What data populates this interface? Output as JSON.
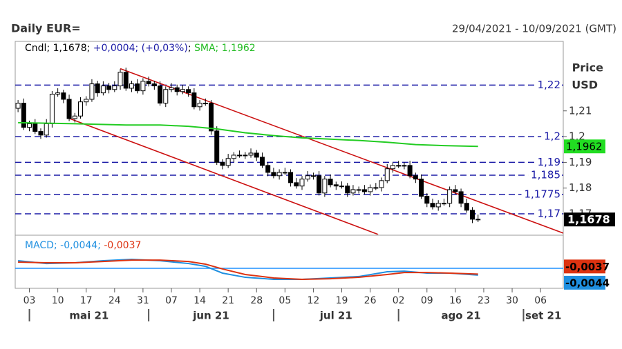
{
  "chart_data": [
    {
      "type": "candlestick",
      "title": "Daily EUR=",
      "subtitle": "29/04/2021 - 10/09/2021 (GMT)",
      "y_label": "Price",
      "y_unit": "USD",
      "xlim": [
        -0.5,
        96
      ],
      "xticks": [
        {
          "value": 2,
          "label": "03"
        },
        {
          "value": 7,
          "label": "10"
        },
        {
          "value": 12,
          "label": "17"
        },
        {
          "value": 17,
          "label": "24"
        },
        {
          "value": 22,
          "label": "31"
        },
        {
          "value": 27,
          "label": "07"
        },
        {
          "value": 32,
          "label": "14"
        },
        {
          "value": 37,
          "label": "21"
        },
        {
          "value": 42,
          "label": "28"
        },
        {
          "value": 47,
          "label": "05"
        },
        {
          "value": 52,
          "label": "12"
        },
        {
          "value": 57,
          "label": "19"
        },
        {
          "value": 62,
          "label": "26"
        },
        {
          "value": 67,
          "label": "02"
        },
        {
          "value": 72,
          "label": "09"
        },
        {
          "value": 77,
          "label": "16"
        },
        {
          "value": 82,
          "label": "23"
        },
        {
          "value": 87,
          "label": "30"
        },
        {
          "value": 92,
          "label": "06"
        }
      ],
      "month_ticks": [
        {
          "value": 2,
          "label": "mai 21"
        },
        {
          "value": 23,
          "label": "jun 21"
        },
        {
          "value": 45,
          "label": "jul 21"
        },
        {
          "value": 67,
          "label": "ago 21"
        },
        {
          "value": 89,
          "label": "set 21"
        }
      ],
      "ylim": [
        1.1625,
        1.237
      ],
      "yticks": [
        {
          "value": 1.21,
          "label": "1,21"
        },
        {
          "value": 1.2,
          "label": "1,2"
        },
        {
          "value": 1.19,
          "label": "1,19"
        },
        {
          "value": 1.18,
          "label": "1,18"
        },
        {
          "value": 1.17,
          "label": "1,17"
        }
      ],
      "series": [
        {
          "name": "Cndl",
          "color": "#000000",
          "last_label": "1,1678",
          "change": "+0,0004",
          "change_pct": "(+0,03%)",
          "x": [
            0,
            1,
            2,
            3,
            4,
            5,
            6,
            7,
            8,
            9,
            10,
            11,
            12,
            13,
            14,
            15,
            16,
            17,
            18,
            19,
            20,
            21,
            22,
            23,
            24,
            25,
            26,
            27,
            28,
            29,
            30,
            31,
            32,
            33,
            34,
            35,
            36,
            37,
            38,
            39,
            40,
            41,
            42,
            43,
            44,
            45,
            46,
            47,
            48,
            49,
            50,
            51,
            52,
            53,
            54,
            55,
            56,
            57,
            58,
            59,
            60,
            61,
            62,
            63,
            64,
            65,
            66,
            67,
            68,
            69,
            70,
            71,
            72,
            73,
            74,
            75,
            76,
            77,
            78,
            79,
            80,
            81
          ],
          "open": [
            1.211,
            1.213,
            1.2036,
            1.205,
            1.202,
            1.2006,
            1.205,
            1.2165,
            1.217,
            1.2145,
            1.207,
            1.208,
            1.2135,
            1.2145,
            1.2205,
            1.217,
            1.2197,
            1.2183,
            1.2197,
            1.225,
            1.2188,
            1.2205,
            1.2178,
            1.2215,
            1.2205,
            1.2197,
            1.213,
            1.2183,
            1.219,
            1.2175,
            1.2183,
            1.217,
            1.2116,
            1.213,
            1.213,
            1.2022,
            1.19,
            1.1888,
            1.1915,
            1.1928,
            1.1928,
            1.1928,
            1.1936,
            1.192,
            1.1888,
            1.1861,
            1.1848,
            1.1861,
            1.1861,
            1.1821,
            1.1808,
            1.1835,
            1.1848,
            1.1848,
            1.1781,
            1.1835,
            1.1813,
            1.1808,
            1.1808,
            1.1781,
            1.1794,
            1.1794,
            1.1786,
            1.1802,
            1.1802,
            1.1829,
            1.1875,
            1.1888,
            1.1888,
            1.1888,
            1.1848,
            1.1835,
            1.1768,
            1.1741,
            1.1727,
            1.1741,
            1.1741,
            1.1794,
            1.1786,
            1.1741,
            1.1714,
            1.1679
          ],
          "high": [
            1.2142,
            1.2148,
            1.2062,
            1.2068,
            1.2032,
            1.2068,
            1.2177,
            1.2188,
            1.2182,
            1.2163,
            1.2092,
            1.2153,
            1.2157,
            1.2223,
            1.2217,
            1.2215,
            1.2209,
            1.2215,
            1.2262,
            1.2268,
            1.2217,
            1.2223,
            1.2227,
            1.2233,
            1.2217,
            1.2215,
            1.2195,
            1.2208,
            1.2202,
            1.2201,
            1.2195,
            1.2188,
            1.2142,
            1.2148,
            1.2142,
            1.204,
            1.1912,
            1.1933,
            1.194,
            1.1946,
            1.194,
            1.1954,
            1.1948,
            1.1938,
            1.19,
            1.1879,
            1.1873,
            1.1879,
            1.1873,
            1.1839,
            1.1847,
            1.1866,
            1.186,
            1.1866,
            1.1847,
            1.1853,
            1.1825,
            1.1826,
            1.182,
            1.1812,
            1.1806,
            1.1812,
            1.1814,
            1.182,
            1.1841,
            1.1893,
            1.19,
            1.1906,
            1.19,
            1.1906,
            1.186,
            1.1853,
            1.178,
            1.1759,
            1.1753,
            1.1759,
            1.1806,
            1.1812,
            1.1798,
            1.1759,
            1.1726,
            1.1697
          ],
          "low": [
            1.2095,
            1.2026,
            1.2021,
            1.201,
            1.1991,
            1.1996,
            1.2035,
            1.2155,
            1.213,
            1.206,
            1.2055,
            1.207,
            1.212,
            1.2135,
            1.2155,
            1.216,
            1.2168,
            1.2173,
            1.2182,
            1.2178,
            1.2173,
            1.2168,
            1.2163,
            1.2195,
            1.2182,
            1.212,
            1.2115,
            1.2173,
            1.216,
            1.2165,
            1.2155,
            1.2106,
            1.2101,
            1.212,
            1.2007,
            1.189,
            1.1873,
            1.1878,
            1.19,
            1.1918,
            1.1913,
            1.1918,
            1.1905,
            1.1878,
            1.1846,
            1.1838,
            1.1833,
            1.1851,
            1.1806,
            1.1798,
            1.1793,
            1.1825,
            1.1833,
            1.1771,
            1.1766,
            1.1803,
            1.1793,
            1.1798,
            1.1766,
            1.1771,
            1.1779,
            1.1776,
            1.1771,
            1.1792,
            1.1787,
            1.1819,
            1.186,
            1.1878,
            1.1873,
            1.1838,
            1.182,
            1.1758,
            1.1726,
            1.1717,
            1.1712,
            1.1731,
            1.1726,
            1.1776,
            1.1726,
            1.1704,
            1.1664,
            1.1668
          ],
          "close": [
            1.213,
            1.2036,
            1.205,
            1.202,
            1.2006,
            1.205,
            1.2165,
            1.217,
            1.2145,
            1.207,
            1.208,
            1.2135,
            1.2145,
            1.2205,
            1.217,
            1.2197,
            1.2183,
            1.2197,
            1.225,
            1.2188,
            1.2205,
            1.2178,
            1.2215,
            1.2205,
            1.2197,
            1.213,
            1.2183,
            1.219,
            1.2175,
            1.2183,
            1.217,
            1.2116,
            1.213,
            1.213,
            1.2022,
            1.19,
            1.1888,
            1.1915,
            1.1928,
            1.1928,
            1.1928,
            1.1936,
            1.192,
            1.1888,
            1.1861,
            1.1848,
            1.1861,
            1.1861,
            1.1821,
            1.1808,
            1.1835,
            1.1848,
            1.1848,
            1.1781,
            1.1835,
            1.1813,
            1.1808,
            1.1808,
            1.1781,
            1.1794,
            1.1794,
            1.1786,
            1.1802,
            1.1802,
            1.1829,
            1.1875,
            1.1888,
            1.1888,
            1.1888,
            1.1848,
            1.1835,
            1.1768,
            1.1741,
            1.1727,
            1.1741,
            1.1741,
            1.1794,
            1.1786,
            1.1741,
            1.1714,
            1.1679,
            1.1678
          ]
        },
        {
          "name": "SMA",
          "color": "#22cc22",
          "last_label": "1,1962",
          "x": [
            0,
            10,
            19,
            25,
            30,
            35,
            40,
            45,
            50,
            55,
            60,
            65,
            70,
            75,
            81
          ],
          "values": [
            1.2054,
            1.205,
            1.2045,
            1.2045,
            1.204,
            1.203,
            1.2015,
            1.2004,
            1.1995,
            1.199,
            1.1985,
            1.1978,
            1.1969,
            1.1965,
            1.1962
          ]
        }
      ],
      "levels": {
        "color": "#1a1aa6",
        "values": [
          1.22,
          1.2,
          1.19,
          1.185,
          1.1775,
          1.17
        ],
        "labels": [
          "1,22",
          "1,2",
          "1,19",
          "1,185",
          "1,1775",
          "1,17"
        ]
      },
      "trendlines": {
        "color": "#cc1111",
        "lines": [
          {
            "x": [
              18,
              96
            ],
            "y": [
              1.2264,
              1.1625
            ]
          },
          {
            "x": [
              9,
              63.4
            ],
            "y": [
              1.2071,
              1.162
            ]
          }
        ]
      }
    },
    {
      "type": "line",
      "title": "MACD",
      "ylim": [
        -0.0129,
        0.0196
      ],
      "zero_line": {
        "value": 0,
        "color": "#1e90ff"
      },
      "series": [
        {
          "name": "MACD",
          "color": "#1e8fe0",
          "last_label": "-0,0044",
          "x": [
            0,
            5,
            10,
            15,
            20,
            25,
            30,
            33,
            36,
            40,
            45,
            50,
            55,
            60,
            65,
            68,
            72,
            76,
            81
          ],
          "values": [
            0.0049,
            0.0031,
            0.0036,
            0.0049,
            0.0058,
            0.0049,
            0.0031,
            0.0013,
            -0.0031,
            -0.0058,
            -0.0071,
            -0.0071,
            -0.0062,
            -0.0053,
            -0.0022,
            -0.0018,
            -0.0031,
            -0.0031,
            -0.0044
          ]
        },
        {
          "color": "#dd3311",
          "last_label": "-0,0037",
          "x": [
            0,
            5,
            10,
            15,
            20,
            25,
            30,
            33,
            36,
            40,
            45,
            50,
            55,
            60,
            65,
            68,
            72,
            76,
            81
          ],
          "values": [
            0.004,
            0.0036,
            0.0036,
            0.0044,
            0.0053,
            0.0053,
            0.0044,
            0.0027,
            -0.0004,
            -0.004,
            -0.0062,
            -0.0071,
            -0.0067,
            -0.0058,
            -0.004,
            -0.0027,
            -0.0027,
            -0.0031,
            -0.0037
          ]
        }
      ]
    }
  ]
}
